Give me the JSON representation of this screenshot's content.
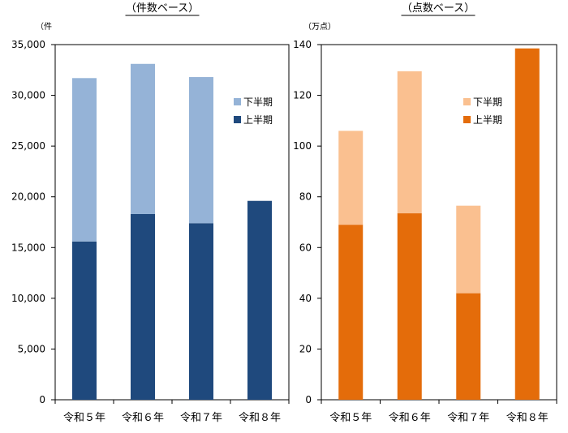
{
  "chart_data": [
    {
      "type": "bar",
      "stacked": true,
      "title": "（件数ベース）",
      "unit_label": "（件",
      "categories": [
        "令和５年",
        "令和６年",
        "令和７年",
        "令和８年"
      ],
      "ylim": [
        0,
        35000
      ],
      "yticks": [
        0,
        5000,
        10000,
        15000,
        20000,
        25000,
        30000,
        35000
      ],
      "ytick_labels": [
        "0",
        "5,000",
        "10,000",
        "15,000",
        "20,000",
        "25,000",
        "30,000",
        "35,000"
      ],
      "grid": false,
      "legend_position": "right",
      "series": [
        {
          "name": "上半期",
          "color": "#1f497d",
          "values": [
            15600,
            18300,
            17400,
            19600
          ]
        },
        {
          "name": "下半期",
          "color": "#95b3d7",
          "values": [
            16100,
            14800,
            14400,
            0
          ]
        }
      ],
      "legend_order": [
        1,
        0
      ]
    },
    {
      "type": "bar",
      "stacked": true,
      "title": "（点数ベース）",
      "unit_label": "（万点）",
      "categories": [
        "令和５年",
        "令和６年",
        "令和７年",
        "令和８年"
      ],
      "ylim": [
        0,
        140
      ],
      "yticks": [
        0,
        20,
        40,
        60,
        80,
        100,
        120,
        140
      ],
      "ytick_labels": [
        "0",
        "20",
        "40",
        "60",
        "80",
        "100",
        "120",
        "140"
      ],
      "grid": false,
      "legend_position": "right",
      "series": [
        {
          "name": "上半期",
          "color": "#e46c0a",
          "values": [
            69,
            73.5,
            42,
            138.5
          ]
        },
        {
          "name": "下半期",
          "color": "#fac090",
          "values": [
            37,
            56,
            34.5,
            0
          ]
        }
      ],
      "legend_order": [
        1,
        0
      ]
    }
  ]
}
